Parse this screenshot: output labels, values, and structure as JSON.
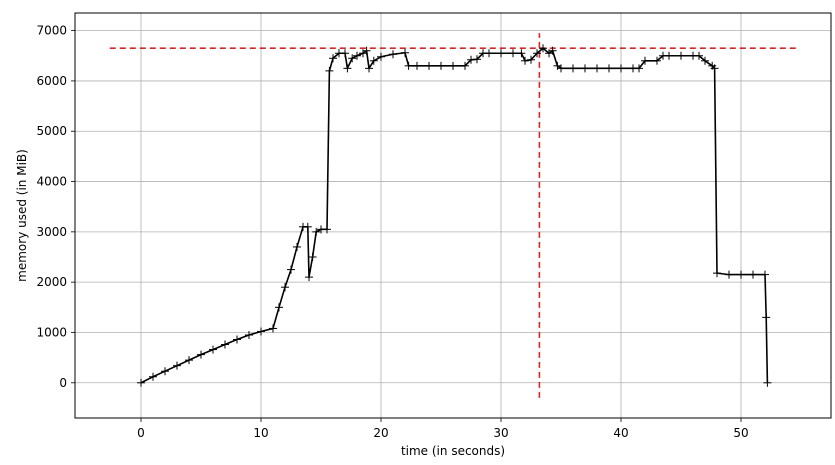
{
  "chart_data": {
    "type": "line",
    "title": "",
    "xlabel": "time (in seconds)",
    "ylabel": "memory used (in MiB)",
    "xlim": [
      -5.5,
      57.5
    ],
    "ylim": [
      -700,
      7350
    ],
    "xticks": [
      0,
      10,
      20,
      30,
      40,
      50
    ],
    "yticks": [
      0,
      1000,
      2000,
      3000,
      4000,
      5000,
      6000,
      7000
    ],
    "xtick_labels": [
      "0",
      "10",
      "20",
      "30",
      "40",
      "50"
    ],
    "ytick_labels": [
      "0",
      "1000",
      "2000",
      "3000",
      "4000",
      "5000",
      "6000",
      "7000"
    ],
    "grid": true,
    "legend": "none",
    "series": [
      {
        "color": "#000000",
        "marker": "+",
        "x": [
          0,
          1,
          2,
          3,
          4,
          5,
          6,
          7,
          8,
          9,
          10,
          11,
          11.5,
          12,
          12.5,
          13,
          13.5,
          13.9,
          14,
          14.3,
          14.6,
          15,
          15.5,
          15.7,
          16,
          16.5,
          17,
          17.2,
          17.6,
          18,
          18.5,
          18.8,
          19,
          19.4,
          20,
          21,
          22,
          22.3,
          23,
          24,
          25,
          26,
          27,
          27.5,
          28,
          28.5,
          29,
          30,
          31,
          31.7,
          32,
          32.5,
          33,
          33.5,
          34,
          34.3,
          34.7,
          35,
          36,
          37,
          38,
          39,
          40,
          41,
          41.5,
          42,
          43,
          43.5,
          44,
          45,
          46,
          46.5,
          47,
          47.6,
          47.8,
          48,
          49,
          50,
          51,
          52,
          52.1,
          52.2
        ],
        "y": [
          0,
          120,
          230,
          340,
          450,
          560,
          660,
          760,
          860,
          950,
          1020,
          1080,
          1500,
          1900,
          2250,
          2700,
          3100,
          3100,
          2100,
          2500,
          3000,
          3050,
          3050,
          6200,
          6450,
          6550,
          6550,
          6250,
          6450,
          6500,
          6550,
          6600,
          6250,
          6400,
          6480,
          6530,
          6560,
          6300,
          6300,
          6300,
          6300,
          6300,
          6300,
          6420,
          6430,
          6550,
          6550,
          6550,
          6550,
          6550,
          6400,
          6420,
          6550,
          6650,
          6550,
          6600,
          6300,
          6250,
          6250,
          6250,
          6250,
          6250,
          6250,
          6250,
          6250,
          6400,
          6400,
          6500,
          6500,
          6500,
          6500,
          6500,
          6400,
          6300,
          6250,
          2180,
          2150,
          2150,
          2150,
          2150,
          1300,
          0
        ]
      }
    ],
    "reference_lines": [
      {
        "orientation": "horizontal",
        "value": 6650,
        "from": -2.6,
        "to": 54.8,
        "color": "#d62728",
        "style": "dashed"
      },
      {
        "orientation": "vertical",
        "value": 33.2,
        "from": -300,
        "to": 6950,
        "color": "#d62728",
        "style": "dashed"
      }
    ]
  }
}
